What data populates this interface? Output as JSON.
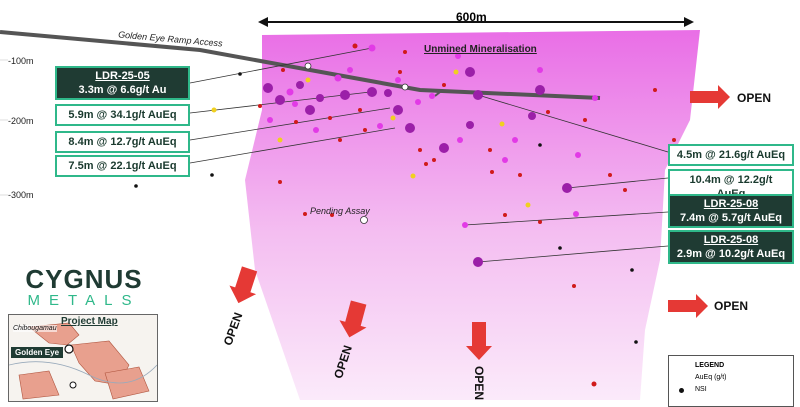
{
  "scale_label": "600m",
  "depth_labels": [
    "-100m",
    "-200m",
    "-300m"
  ],
  "ramp_label": "Golden Eye Ramp Access",
  "unmined_label": "Unmined Mineralisation",
  "pending_label": "Pending Assay",
  "open_label": "OPEN",
  "callouts": {
    "c1_title": "LDR-25-05",
    "c1_text": "3.3m @ 6.6g/t Au",
    "c2": "5.9m @ 34.1g/t AuEq",
    "c3": "8.4m @ 12.7g/t AuEq",
    "c4": "7.5m @ 22.1g/t AuEq",
    "c5": "4.5m @ 21.6g/t AuEq",
    "c6": "10.4m @ 12.2g/t AuEq",
    "c7_title": "LDR-25-08",
    "c7_text": "7.4m @ 5.7g/t AuEq",
    "c8_title": "LDR-25-08",
    "c8_text": "2.9m @ 10.2g/t AuEq"
  },
  "logo": {
    "line1": "CYGNUS",
    "line2": "METALS"
  },
  "project_map": {
    "title": "Project Map",
    "town": "Chibougamau",
    "site": "Golden Eye"
  },
  "legend": {
    "title": "LEGEND",
    "sub": "AuEq (g/t)",
    "nsi": "NSI"
  },
  "colors": {
    "zone": "#f2b8f0",
    "high": "#9b1fa8",
    "mid": "#e23ae6",
    "low": "#d01a1a",
    "yellow": "#f0d020",
    "accent": "#2fb88a",
    "dark": "#1f3b33",
    "arrow": "#e53935"
  }
}
